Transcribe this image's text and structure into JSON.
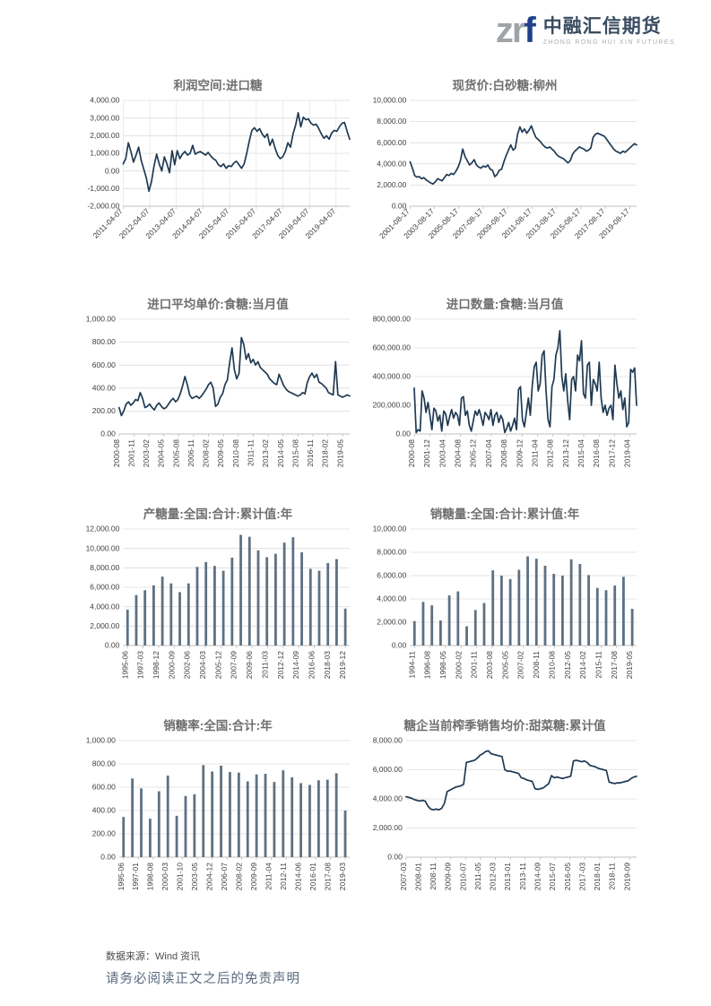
{
  "page": {
    "logo": {
      "mark_zr": "zr",
      "mark_f": "f",
      "company_cn": "中融汇信期货",
      "company_en": "ZHONG RONG HUI XIN FUTURES"
    },
    "footer": {
      "source_label": "数据来源：Wind 资讯",
      "disclaimer": "请务必阅读正文之后的免责声明"
    },
    "colors": {
      "line": "#1f3a53",
      "bar": "#5d7183",
      "grid": "#dcdcdc",
      "grid_vertical": "#e4e4e4",
      "axis": "#c0c0c0",
      "tick_text": "#3f3f3f",
      "title_text": "#6f6f6f",
      "logo_gray": "#9fa4a9",
      "logo_blue": "#1d4289"
    }
  },
  "chart_data": [
    {
      "type": "line",
      "title": "利润空间:进口糖",
      "ylim": [
        -2000,
        4000
      ],
      "yticks": [
        -2000,
        -1000,
        0,
        1000,
        2000,
        3000,
        4000
      ],
      "x_labels": [
        "2011-04-07",
        "2012-04-07",
        "2013-04-07",
        "2014-04-07",
        "2015-04-07",
        "2016-04-07",
        "2017-04-07",
        "2018-04-07",
        "2019-04-07"
      ],
      "x_label_rotation": 45,
      "x_label_span": 0.94,
      "grid_x": true,
      "legend": "none",
      "values": [
        400,
        700,
        1600,
        1100,
        500,
        900,
        1350,
        600,
        100,
        -400,
        -1150,
        -600,
        300,
        950,
        400,
        0,
        800,
        400,
        -100,
        1150,
        350,
        1150,
        700,
        950,
        1100,
        900,
        1000,
        1450,
        950,
        1050,
        1100,
        1000,
        900,
        1050,
        850,
        700,
        600,
        350,
        250,
        400,
        150,
        300,
        250,
        450,
        550,
        350,
        150,
        400,
        1000,
        1700,
        2300,
        2450,
        2250,
        2400,
        2100,
        1900,
        2100,
        1450,
        1800,
        1300,
        900,
        700,
        800,
        1100,
        1600,
        1350,
        2100,
        2600,
        3300,
        2500,
        3050,
        2900,
        2950,
        2700,
        2600,
        2650,
        2400,
        2100,
        1850,
        2000,
        1800,
        2150,
        2300,
        2250,
        2500,
        2700,
        2750,
        2250,
        1800
      ]
    },
    {
      "type": "line",
      "title": "现货价:白砂糖:柳州",
      "ylim": [
        0,
        10000
      ],
      "yticks": [
        0,
        2000,
        4000,
        6000,
        8000,
        10000
      ],
      "x_labels": [
        "2001-08-17",
        "2003-08-17",
        "2005-08-17",
        "2007-08-17",
        "2009-08-17",
        "2011-08-17",
        "2013-08-17",
        "2015-08-17",
        "2017-08-17",
        "2019-08-17"
      ],
      "x_label_rotation": 45,
      "x_label_span": 0.97,
      "grid_x": false,
      "legend": "none",
      "values": [
        4200,
        3600,
        2900,
        2750,
        2800,
        2600,
        2700,
        2500,
        2350,
        2200,
        2100,
        2300,
        2600,
        2500,
        2400,
        2700,
        3000,
        2900,
        3100,
        3000,
        3300,
        3700,
        4300,
        5400,
        4700,
        4300,
        3900,
        4100,
        4400,
        3900,
        3700,
        3600,
        3800,
        3700,
        3900,
        3500,
        3400,
        2800,
        3000,
        3400,
        3500,
        4200,
        4800,
        5300,
        5800,
        5300,
        5500,
        6800,
        7500,
        7000,
        7300,
        6900,
        7200,
        7600,
        7000,
        6500,
        6300,
        6100,
        5800,
        5600,
        5500,
        5600,
        5400,
        5200,
        4900,
        4700,
        4600,
        4500,
        4300,
        4100,
        4300,
        4900,
        5200,
        5400,
        5600,
        5500,
        5400,
        5200,
        5300,
        5500,
        6500,
        6800,
        6900,
        6800,
        6700,
        6600,
        6300,
        6000,
        5700,
        5400,
        5200,
        5100,
        5000,
        5200,
        5100,
        5300,
        5500,
        5700,
        5900,
        5800
      ]
    },
    {
      "type": "line",
      "title": "进口平均单价:食糖:当月值",
      "ylim": [
        0,
        1000
      ],
      "yticks": [
        0,
        200,
        400,
        600,
        800,
        1000
      ],
      "x_labels": [
        "2000-08",
        "2001-11",
        "2003-02",
        "2004-05",
        "2005-08",
        "2006-11",
        "2008-02",
        "2009-05",
        "2010-08",
        "2011-11",
        "2013-02",
        "2014-05",
        "2015-08",
        "2016-11",
        "2018-02",
        "2019-05"
      ],
      "x_label_rotation": 90,
      "x_label_span": 0.97,
      "grid_x": false,
      "legend": "none",
      "values": [
        230,
        160,
        200,
        260,
        280,
        250,
        270,
        300,
        290,
        360,
        310,
        230,
        240,
        260,
        230,
        210,
        250,
        270,
        240,
        220,
        230,
        260,
        290,
        310,
        280,
        300,
        350,
        420,
        500,
        430,
        340,
        310,
        320,
        330,
        310,
        330,
        360,
        390,
        430,
        450,
        400,
        240,
        260,
        320,
        350,
        430,
        470,
        620,
        750,
        560,
        480,
        530,
        840,
        780,
        650,
        700,
        620,
        650,
        600,
        630,
        580,
        560,
        540,
        520,
        480,
        460,
        440,
        430,
        520,
        470,
        420,
        390,
        370,
        360,
        350,
        340,
        330,
        340,
        360,
        350,
        450,
        500,
        530,
        490,
        520,
        450,
        440,
        420,
        400,
        360,
        350,
        340,
        630,
        340,
        330,
        320,
        330,
        340,
        330
      ]
    },
    {
      "type": "line",
      "title": "进口数量:食糖:当月值",
      "ylim": [
        0,
        800000
      ],
      "yticks": [
        0,
        200000,
        400000,
        600000,
        800000
      ],
      "x_labels": [
        "2000-08",
        "2001-12",
        "2003-04",
        "2004-08",
        "2005-12",
        "2007-04",
        "2008-08",
        "2009-12",
        "2011-04",
        "2012-08",
        "2013-12",
        "2015-04",
        "2016-08",
        "2017-12",
        "2019-04"
      ],
      "x_label_rotation": 90,
      "x_label_span": 0.97,
      "grid_x": false,
      "legend": "none",
      "values": [
        320000,
        10000,
        30000,
        20000,
        300000,
        250000,
        150000,
        220000,
        130000,
        30000,
        180000,
        160000,
        90000,
        130000,
        20000,
        160000,
        140000,
        60000,
        120000,
        170000,
        110000,
        150000,
        130000,
        60000,
        250000,
        260000,
        130000,
        160000,
        60000,
        20000,
        90000,
        160000,
        130000,
        170000,
        120000,
        60000,
        150000,
        130000,
        100000,
        170000,
        60000,
        130000,
        150000,
        80000,
        130000,
        100000,
        10000,
        40000,
        80000,
        20000,
        60000,
        110000,
        30000,
        310000,
        330000,
        100000,
        50000,
        150000,
        250000,
        130000,
        340000,
        470000,
        500000,
        300000,
        350000,
        550000,
        580000,
        300000,
        100000,
        50000,
        330000,
        380000,
        550000,
        600000,
        720000,
        400000,
        300000,
        420000,
        230000,
        100000,
        380000,
        400000,
        300000,
        550000,
        510000,
        650000,
        280000,
        250000,
        480000,
        500000,
        200000,
        380000,
        350000,
        300000,
        500000,
        250000,
        150000,
        200000,
        130000,
        180000,
        200000,
        100000,
        480000,
        350000,
        250000,
        300000,
        170000,
        250000,
        50000,
        80000,
        450000,
        430000,
        460000,
        200000
      ]
    },
    {
      "type": "bar",
      "title": "产糖量:全国:合计:累计值:年",
      "ylim": [
        0,
        12000
      ],
      "yticks": [
        0,
        2000,
        4000,
        6000,
        8000,
        10000,
        12000
      ],
      "x_labels": [
        "1995-06",
        "1997-03",
        "1998-12",
        "2000-09",
        "2002-06",
        "2004-03",
        "2005-12",
        "2007-09",
        "2009-06",
        "2011-03",
        "2012-12",
        "2014-09",
        "2016-06",
        "2018-03",
        "2019-12"
      ],
      "x_label_rotation": 90,
      "grid_x": false,
      "legend": "none",
      "values": [
        3700,
        5200,
        5700,
        6200,
        7100,
        6400,
        5500,
        6400,
        8100,
        8600,
        8200,
        7700,
        9050,
        11400,
        11200,
        9800,
        9100,
        9450,
        10600,
        11150,
        9600,
        7900,
        7700,
        8500,
        8900,
        3800
      ]
    },
    {
      "type": "bar",
      "title": "销糖量:全国:合计:累计值:年",
      "ylim": [
        0,
        10000
      ],
      "yticks": [
        0,
        2000,
        4000,
        6000,
        8000,
        10000
      ],
      "x_labels": [
        "1994-11",
        "1996-08",
        "1998-05",
        "2000-02",
        "2001-11",
        "2003-08",
        "2005-05",
        "2007-02",
        "2008-11",
        "2010-08",
        "2012-05",
        "2014-02",
        "2015-11",
        "2017-08",
        "2019-05"
      ],
      "x_label_rotation": 90,
      "grid_x": false,
      "legend": "none",
      "values": [
        2100,
        3750,
        3450,
        2150,
        4300,
        4650,
        1650,
        3050,
        3650,
        6450,
        6000,
        5700,
        6500,
        7650,
        7450,
        6850,
        6150,
        6000,
        7400,
        7000,
        6050,
        4950,
        4750,
        5150,
        5900,
        3150
      ]
    },
    {
      "type": "bar",
      "title": "销糖率:全国:合计:年",
      "ylim": [
        0,
        1000
      ],
      "yticks": [
        0,
        200,
        400,
        600,
        800,
        1000
      ],
      "x_labels": [
        "1995-06",
        "1997-01",
        "1998-08",
        "2000-03",
        "2001-10",
        "2003-05",
        "2004-12",
        "2006-07",
        "2008-02",
        "2009-09",
        "2011-04",
        "2012-11",
        "2014-06",
        "2016-01",
        "2017-08",
        "2019-03"
      ],
      "x_label_rotation": 90,
      "grid_x": false,
      "legend": "none",
      "values": [
        345,
        675,
        590,
        330,
        565,
        700,
        355,
        525,
        540,
        790,
        735,
        785,
        730,
        725,
        650,
        710,
        715,
        645,
        745,
        685,
        635,
        620,
        660,
        665,
        720,
        400
      ]
    },
    {
      "type": "line",
      "title": "糖企当前榨季销售均价:甜菜糖:累计值",
      "ylim": [
        0,
        8000
      ],
      "yticks": [
        0,
        2000,
        4000,
        6000,
        8000
      ],
      "x_labels": [
        "2007-03",
        "2008-01",
        "2008-11",
        "2009-09",
        "2010-07",
        "2011-05",
        "2012-03",
        "2013-01",
        "2013-11",
        "2014-09",
        "2015-07",
        "2016-05",
        "2017-03",
        "2018-01",
        "2018-11",
        "2019-09"
      ],
      "x_label_rotation": 90,
      "x_label_span": 0.97,
      "grid_x": false,
      "legend": "none",
      "values": [
        4150,
        4100,
        4050,
        3950,
        3900,
        3850,
        3900,
        3850,
        3500,
        3300,
        3250,
        3300,
        3250,
        3350,
        3700,
        4500,
        4600,
        4700,
        4800,
        4850,
        4900,
        5000,
        6500,
        6550,
        6600,
        6650,
        6800,
        7000,
        7100,
        7250,
        7300,
        7100,
        7050,
        7000,
        6950,
        6900,
        6000,
        5900,
        5900,
        5850,
        5800,
        5750,
        5450,
        5400,
        5300,
        5250,
        5200,
        4700,
        4650,
        4700,
        4750,
        4900,
        5050,
        5600,
        5450,
        5500,
        5450,
        5400,
        5450,
        5500,
        5550,
        6600,
        6650,
        6600,
        6550,
        6600,
        6500,
        6300,
        6250,
        6200,
        6100,
        6050,
        6000,
        5950,
        5150,
        5100,
        5050,
        5100,
        5100,
        5150,
        5200,
        5250,
        5400,
        5500,
        5550
      ]
    }
  ]
}
